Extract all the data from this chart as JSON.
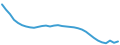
{
  "x": [
    0,
    1,
    2,
    3,
    4,
    5,
    6,
    7,
    8,
    9,
    10,
    11,
    12,
    13,
    14,
    15,
    16,
    17,
    18,
    19,
    20,
    21,
    22,
    23,
    24,
    25,
    26,
    27,
    28,
    29
  ],
  "y": [
    10.0,
    8.8,
    7.8,
    6.5,
    5.8,
    5.3,
    5.0,
    4.8,
    4.7,
    4.9,
    5.1,
    5.2,
    5.0,
    5.2,
    5.3,
    5.1,
    5.0,
    4.9,
    4.8,
    4.6,
    4.3,
    3.8,
    3.1,
    2.4,
    1.8,
    1.4,
    1.2,
    1.8,
    1.3,
    1.6
  ],
  "line_color": "#3d9fd3",
  "line_width": 1.4,
  "background_color": "#ffffff",
  "ylim": [
    0.8,
    11.0
  ],
  "xlim": [
    -0.5,
    29.5
  ]
}
